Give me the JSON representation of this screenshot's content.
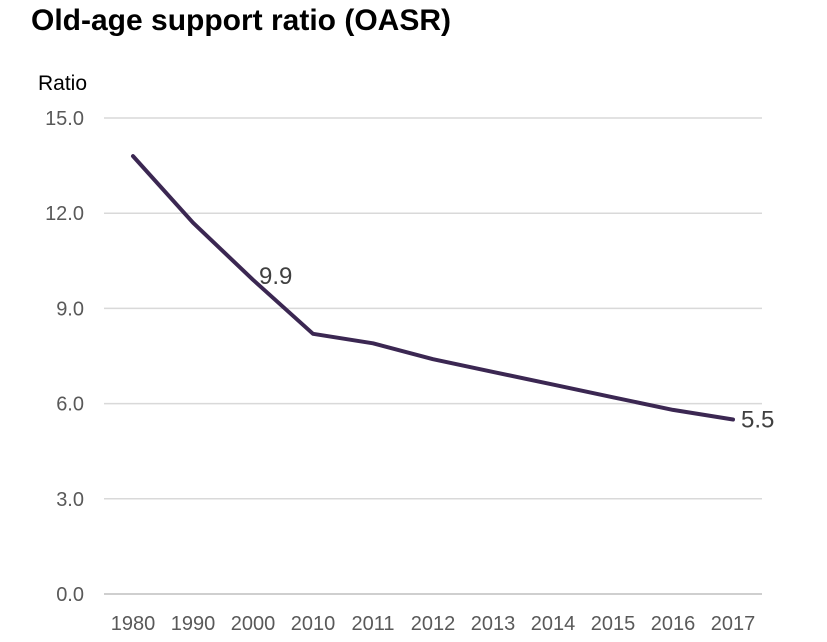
{
  "chart_data": {
    "type": "line",
    "title": "Old-age support ratio (OASR)",
    "ylabel": "Ratio",
    "xlabel": "",
    "categories": [
      "1980",
      "1990",
      "2000",
      "2010",
      "2011",
      "2012",
      "2013",
      "2014",
      "2015",
      "2016",
      "2017"
    ],
    "series": [
      {
        "values": [
          13.8,
          11.7,
          9.9,
          8.2,
          7.9,
          7.4,
          7.0,
          6.6,
          6.2,
          5.8,
          5.5
        ],
        "color": "#3b2752"
      }
    ],
    "ylim": [
      0,
      15
    ],
    "yticks": [
      "0.0",
      "3.0",
      "6.0",
      "9.0",
      "12.0",
      "15.0"
    ],
    "data_labels": [
      {
        "category": "2000",
        "text": "9.9"
      },
      {
        "category": "2017",
        "text": "5.5"
      }
    ],
    "grid": true,
    "gridline_color": "#d9d9d9",
    "legend": "none"
  }
}
